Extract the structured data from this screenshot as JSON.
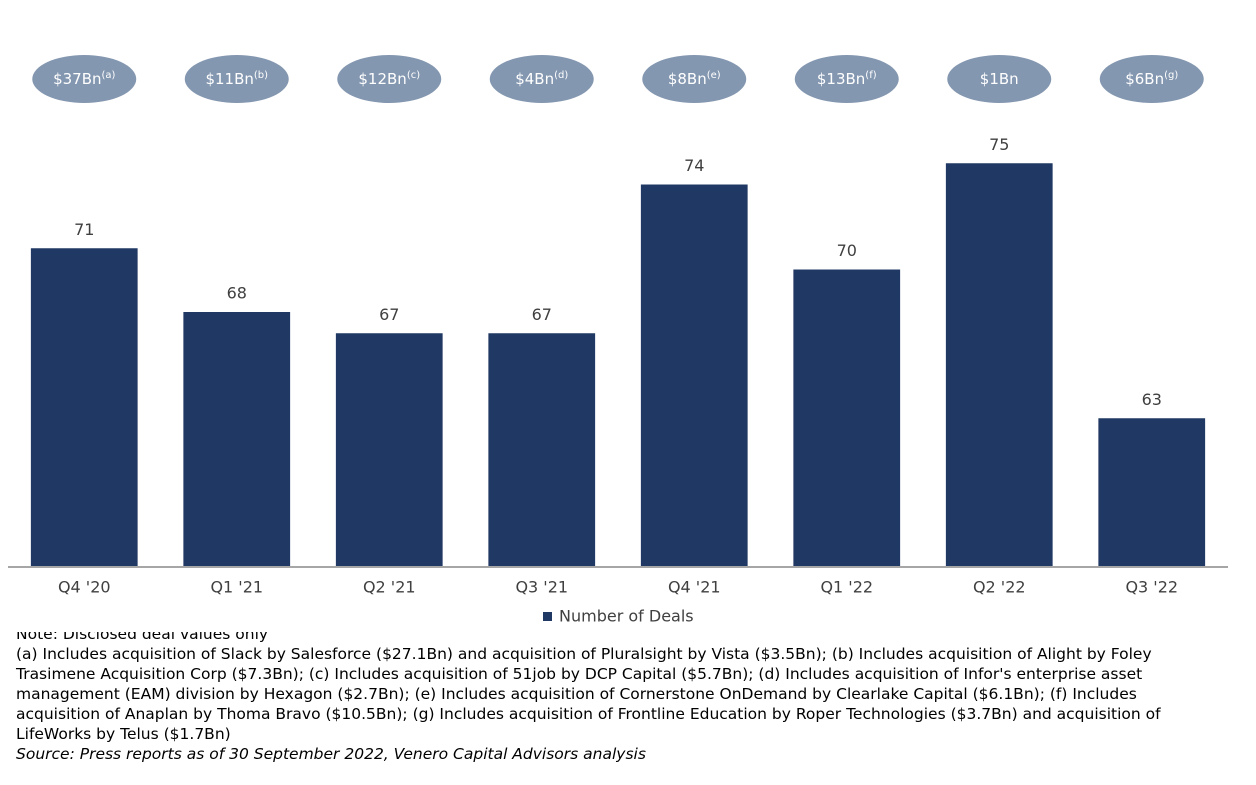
{
  "chart_data": {
    "type": "bar",
    "categories": [
      "Q4 '20",
      "Q1 '21",
      "Q2 '21",
      "Q3 '21",
      "Q4 '21",
      "Q1 '22",
      "Q2 '22",
      "Q3 '22"
    ],
    "series": [
      {
        "name": "Number of Deals",
        "color": "#203864",
        "values": [
          71,
          68,
          67,
          67,
          74,
          70,
          75,
          63
        ]
      }
    ],
    "ylim": [
      56,
      76
    ],
    "annotations": [
      {
        "text": "$37Bn",
        "note": "(a)"
      },
      {
        "text": "$11Bn",
        "note": "(b)"
      },
      {
        "text": "$12Bn",
        "note": "(c)"
      },
      {
        "text": "$4Bn",
        "note": "(d)"
      },
      {
        "text": "$8Bn",
        "note": "(e)"
      },
      {
        "text": "$13Bn",
        "note": "(f)"
      },
      {
        "text": "$1Bn"
      },
      {
        "text": "$6Bn",
        "note": "(g)"
      }
    ],
    "annotation_color": "#8497b0",
    "legend": "bottom"
  },
  "footnotes": {
    "note": "Note: Disclosed deal values only",
    "lines": [
      "(a) Includes acquisition of Slack by Salesforce ($27.1Bn) and acquisition of Pluralsight by Vista ($3.5Bn); (b) Includes acquisition of Alight by Foley",
      "Trasimene Acquisition Corp ($7.3Bn); (c) Includes acquisition of 51job by DCP Capital ($5.7Bn); (d) Includes acquisition of Infor's enterprise asset",
      "management (EAM) division by Hexagon ($2.7Bn); (e) Includes acquisition of Cornerstone OnDemand by Clearlake Capital ($6.1Bn); (f) Includes",
      "acquisition of Anaplan by Thoma Bravo ($10.5Bn); (g) Includes acquisition of Frontline Education by Roper Technologies ($3.7Bn) and acquisition of",
      "LifeWorks by Telus ($1.7Bn)"
    ],
    "source": "Source: Press reports as of 30 September 2022, Venero Capital Advisors analysis"
  }
}
